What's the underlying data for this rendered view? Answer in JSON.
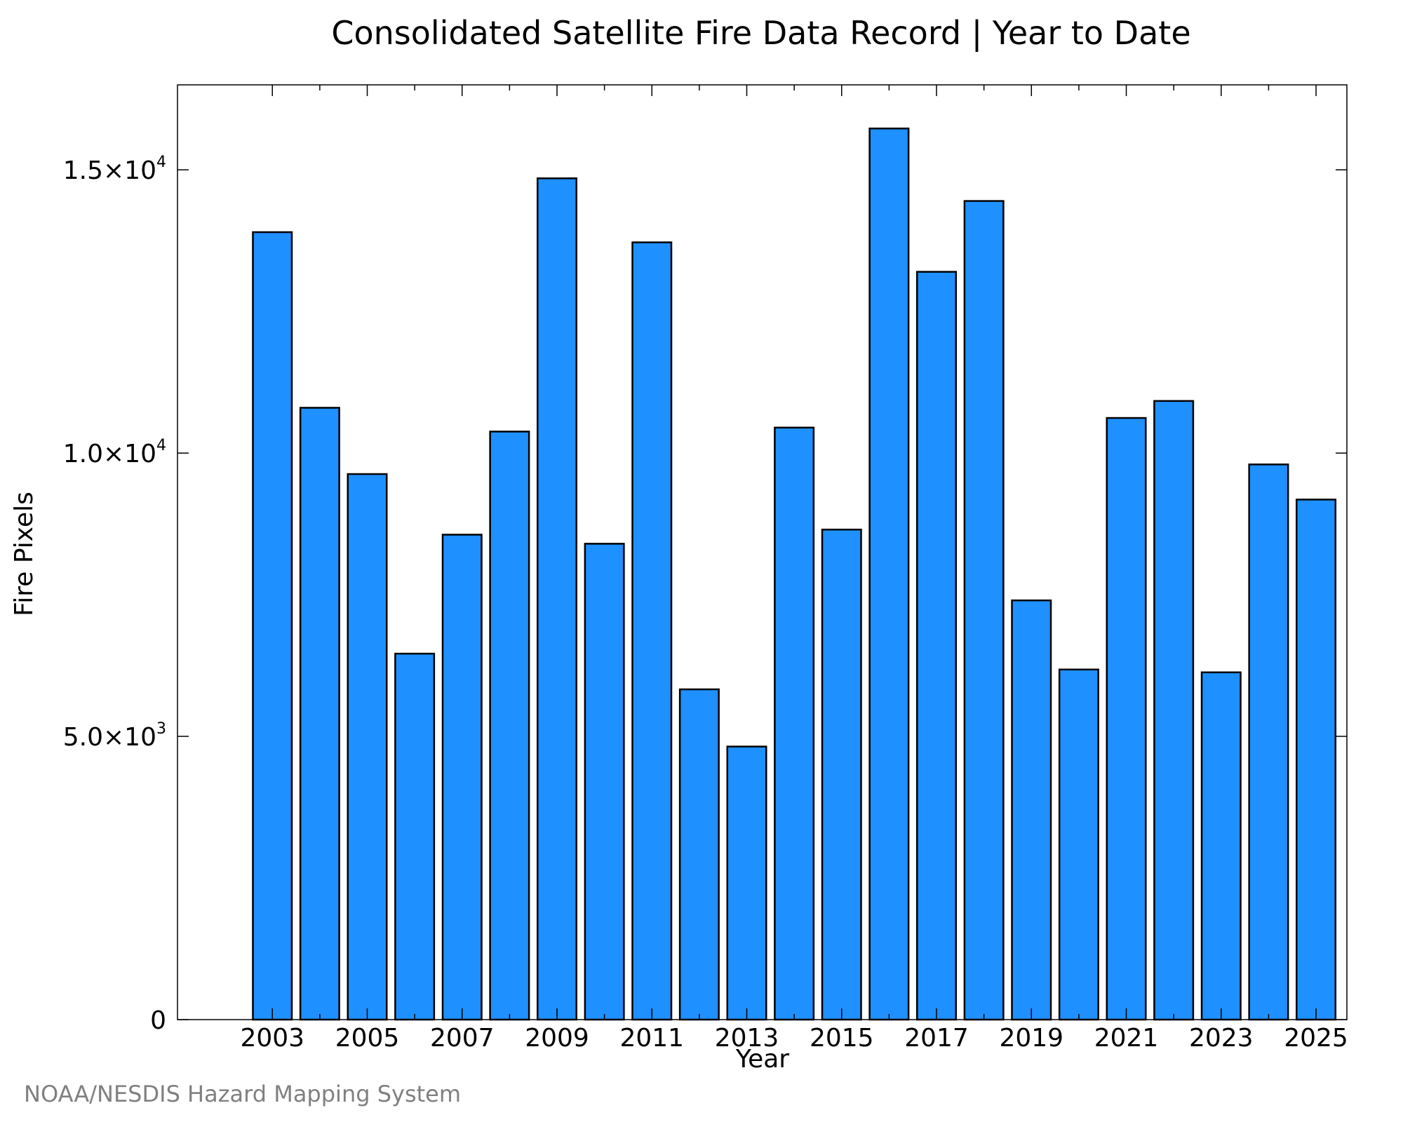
{
  "chart_data": {
    "type": "bar",
    "title": "Consolidated Satellite Fire Data Record | Year to Date",
    "xlabel": "Year",
    "ylabel": "Fire Pixels",
    "credit": "NOAA/NESDIS Hazard Mapping System",
    "bar_color": "#1E90FF",
    "bar_edge_color": "#000000",
    "ylim": [
      0,
      16500
    ],
    "xlim": [
      2001.0,
      2025.65
    ],
    "y_ticks": [
      {
        "value": 0,
        "mantissa": "0",
        "exp": ""
      },
      {
        "value": 5000,
        "mantissa": "5.0×10",
        "exp": "3"
      },
      {
        "value": 10000,
        "mantissa": "1.0×10",
        "exp": "4"
      },
      {
        "value": 15000,
        "mantissa": "1.5×10",
        "exp": "4"
      }
    ],
    "x_tick_labels": [
      "2003",
      "2005",
      "2007",
      "2009",
      "2011",
      "2013",
      "2015",
      "2017",
      "2019",
      "2021",
      "2023",
      "2025"
    ],
    "x_minor_ticks": [
      2004,
      2006,
      2008,
      2010,
      2012,
      2014,
      2016,
      2018,
      2020,
      2022,
      2024
    ],
    "categories": [
      "2003",
      "2004",
      "2005",
      "2006",
      "2007",
      "2008",
      "2009",
      "2010",
      "2011",
      "2012",
      "2013",
      "2014",
      "2015",
      "2016",
      "2017",
      "2018",
      "2019",
      "2020",
      "2021",
      "2022",
      "2023",
      "2024",
      "2025"
    ],
    "values": [
      13900,
      10800,
      9630,
      6460,
      8560,
      10380,
      14850,
      8400,
      13720,
      5830,
      4820,
      10450,
      8650,
      15730,
      13200,
      14450,
      7400,
      6180,
      10620,
      10920,
      6130,
      9800,
      9180
    ],
    "grid": false,
    "legend": "none"
  }
}
